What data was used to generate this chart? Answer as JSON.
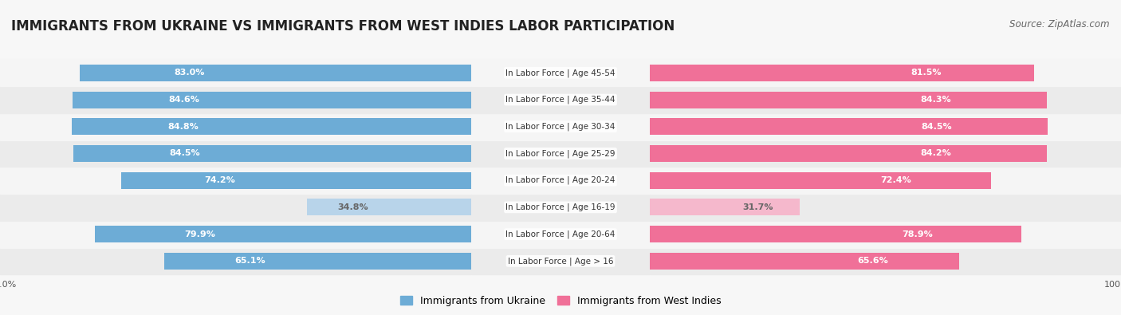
{
  "title": "IMMIGRANTS FROM UKRAINE VS IMMIGRANTS FROM WEST INDIES LABOR PARTICIPATION",
  "source": "Source: ZipAtlas.com",
  "categories": [
    "In Labor Force | Age > 16",
    "In Labor Force | Age 20-64",
    "In Labor Force | Age 16-19",
    "In Labor Force | Age 20-24",
    "In Labor Force | Age 25-29",
    "In Labor Force | Age 30-34",
    "In Labor Force | Age 35-44",
    "In Labor Force | Age 45-54"
  ],
  "ukraine_values": [
    65.1,
    79.9,
    34.8,
    74.2,
    84.5,
    84.8,
    84.6,
    83.0
  ],
  "westindies_values": [
    65.6,
    78.9,
    31.7,
    72.4,
    84.2,
    84.5,
    84.3,
    81.5
  ],
  "ukraine_color": "#6dacd6",
  "ukraine_color_light": "#b8d4ea",
  "westindies_color": "#f07098",
  "westindies_color_light": "#f5b8cc",
  "background_color": "#f7f7f7",
  "row_bg_even": "#ebebeb",
  "row_bg_odd": "#f5f5f5",
  "max_value": 100.0,
  "legend_ukraine": "Immigrants from Ukraine",
  "legend_westindies": "Immigrants from West Indies",
  "title_fontsize": 12,
  "source_fontsize": 8.5,
  "label_fontsize": 8,
  "category_fontsize": 7.5,
  "threshold": 50
}
